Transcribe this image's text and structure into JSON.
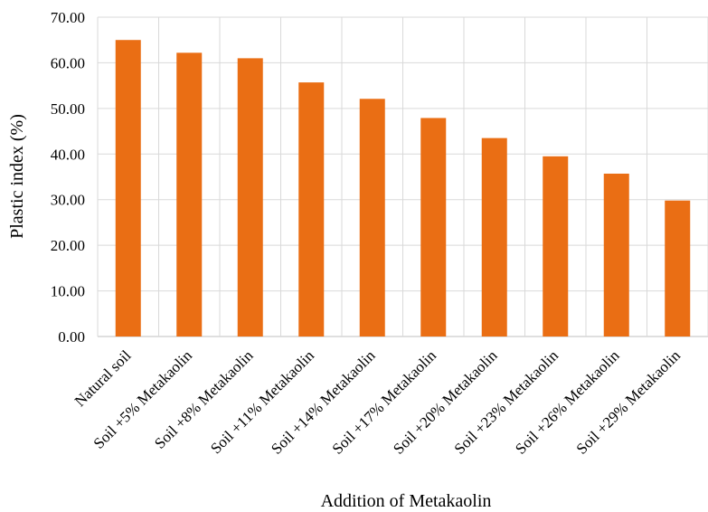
{
  "chart_data": {
    "type": "bar",
    "categories": [
      "Natural soil",
      "Soil +5% Metakaolin",
      "Soil +8% Metakaolin",
      "Soil +11% Metakaolin",
      "Soil +14% Metakaolin",
      "Soil +17% Metakaolin",
      "Soil +20% Metakaolin",
      "Soil +23% Metakaolin",
      "Soil +26% Metakaolin",
      "Soil +29% Metakaolin"
    ],
    "values": [
      65.0,
      62.2,
      61.0,
      55.7,
      52.1,
      47.9,
      43.5,
      39.5,
      35.7,
      29.8
    ],
    "xlabel": "Addition  of Metakaolin",
    "ylabel": "Plastic index (%)",
    "ylim": [
      0,
      70
    ],
    "yticks": [
      "0.00",
      "10.00",
      "20.00",
      "30.00",
      "40.00",
      "50.00",
      "60.00",
      "70.00"
    ],
    "bar_color": "#EA6E14",
    "grid": true
  }
}
